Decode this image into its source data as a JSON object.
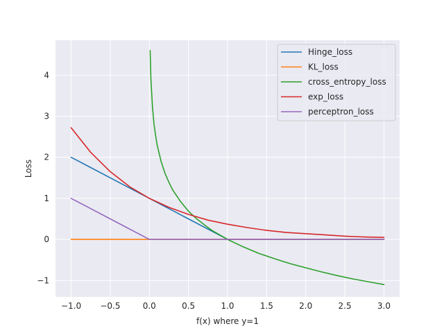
{
  "chart_data": {
    "type": "line",
    "xlabel": "f(x) where y=1",
    "ylabel": "Loss",
    "xlim": [
      -1.2,
      3.2
    ],
    "ylim": [
      -1.4,
      4.85
    ],
    "xticks": [
      -1.0,
      -0.5,
      0.0,
      0.5,
      1.0,
      1.5,
      2.0,
      2.5,
      3.0
    ],
    "xtick_labels": [
      "−1.0",
      "−0.5",
      "0.0",
      "0.5",
      "1.0",
      "1.5",
      "2.0",
      "2.5",
      "3.0"
    ],
    "yticks": [
      -1,
      0,
      1,
      2,
      3,
      4
    ],
    "ytick_labels": [
      "−1",
      "0",
      "1",
      "2",
      "3",
      "4"
    ],
    "grid": true,
    "legend_position": "top-right",
    "series": [
      {
        "name": "Hinge_loss",
        "color": "#1f77b4",
        "x": [
          -1.0,
          -0.5,
          0.0,
          0.5,
          1.0,
          1.5,
          2.0,
          2.5,
          3.0
        ],
        "y": [
          2.0,
          1.5,
          1.0,
          0.5,
          0.0,
          0.0,
          0.0,
          0.0,
          0.0
        ]
      },
      {
        "name": "KL_loss",
        "color": "#ff7f0e",
        "x": [
          -1.0,
          -0.5,
          0.0,
          0.5,
          1.0,
          1.5,
          2.0,
          2.5,
          3.0
        ],
        "y": [
          0.0,
          0.0,
          0.0,
          0.0,
          0.0,
          0.0,
          0.0,
          0.0,
          0.0
        ]
      },
      {
        "name": "cross_entropy_loss",
        "color": "#2ca02c",
        "x": [
          0.01,
          0.02,
          0.04,
          0.06,
          0.08,
          0.1,
          0.15,
          0.2,
          0.25,
          0.3,
          0.4,
          0.5,
          0.6,
          0.7,
          0.8,
          0.9,
          1.0,
          1.2,
          1.4,
          1.6,
          1.8,
          2.0,
          2.2,
          2.4,
          2.6,
          2.8,
          3.0
        ],
        "y": [
          4.6,
          3.91,
          3.22,
          2.81,
          2.53,
          2.3,
          1.9,
          1.61,
          1.39,
          1.2,
          0.92,
          0.69,
          0.51,
          0.36,
          0.22,
          0.11,
          0.0,
          -0.18,
          -0.34,
          -0.47,
          -0.59,
          -0.69,
          -0.79,
          -0.88,
          -0.96,
          -1.03,
          -1.1
        ]
      },
      {
        "name": "exp_loss",
        "color": "#d62728",
        "x": [
          -1.0,
          -0.75,
          -0.5,
          -0.25,
          0.0,
          0.25,
          0.5,
          0.75,
          1.0,
          1.25,
          1.5,
          1.75,
          2.0,
          2.25,
          2.5,
          2.75,
          3.0
        ],
        "y": [
          2.72,
          2.12,
          1.65,
          1.28,
          1.0,
          0.78,
          0.61,
          0.47,
          0.37,
          0.29,
          0.22,
          0.17,
          0.14,
          0.11,
          0.08,
          0.06,
          0.05
        ]
      },
      {
        "name": "perceptron_loss",
        "color": "#9467bd",
        "x": [
          -1.0,
          -0.5,
          0.0,
          0.5,
          1.0,
          1.5,
          2.0,
          2.5,
          3.0
        ],
        "y": [
          1.0,
          0.5,
          0.0,
          0.0,
          0.0,
          0.0,
          0.0,
          0.0,
          0.0
        ]
      }
    ]
  }
}
